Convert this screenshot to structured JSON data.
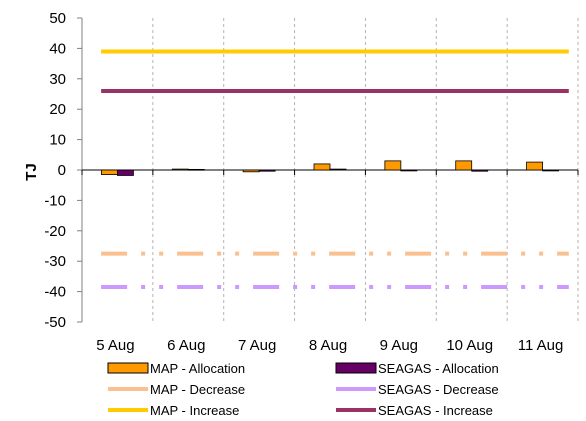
{
  "chart_data": {
    "type": "bar",
    "ylabel": "TJ",
    "ylim": [
      -50,
      50
    ],
    "yticks": [
      50,
      40,
      30,
      20,
      10,
      0,
      -10,
      -20,
      -30,
      -40,
      -50
    ],
    "categories": [
      "5 Aug",
      "6 Aug",
      "7 Aug",
      "8 Aug",
      "9 Aug",
      "10 Aug",
      "11 Aug"
    ],
    "grid": {
      "vertical": true,
      "horizontal": false,
      "style": "dashed"
    },
    "legend": {
      "position": "bottom",
      "columns": 2
    },
    "bar_series": [
      {
        "name": "MAP - Allocation",
        "color": "#FF9900",
        "values": [
          -1.5,
          0.3,
          -0.6,
          2.0,
          3.0,
          3.0,
          2.6
        ]
      },
      {
        "name": "SEAGAS - Allocation",
        "color": "#660066",
        "values": [
          -1.8,
          0.2,
          -0.4,
          0.3,
          -0.3,
          -0.4,
          -0.3
        ]
      }
    ],
    "line_series": [
      {
        "name": "MAP - Decrease",
        "color": "#FAC090",
        "value": -27.5,
        "style": "dash-dot"
      },
      {
        "name": "SEAGAS - Decrease",
        "color": "#CC99FF",
        "value": -38.5,
        "style": "dash-dot"
      },
      {
        "name": "MAP - Increase",
        "color": "#FFCC00",
        "value": 39,
        "style": "solid"
      },
      {
        "name": "SEAGAS - Increase",
        "color": "#993366",
        "value": 26,
        "style": "solid"
      }
    ]
  }
}
